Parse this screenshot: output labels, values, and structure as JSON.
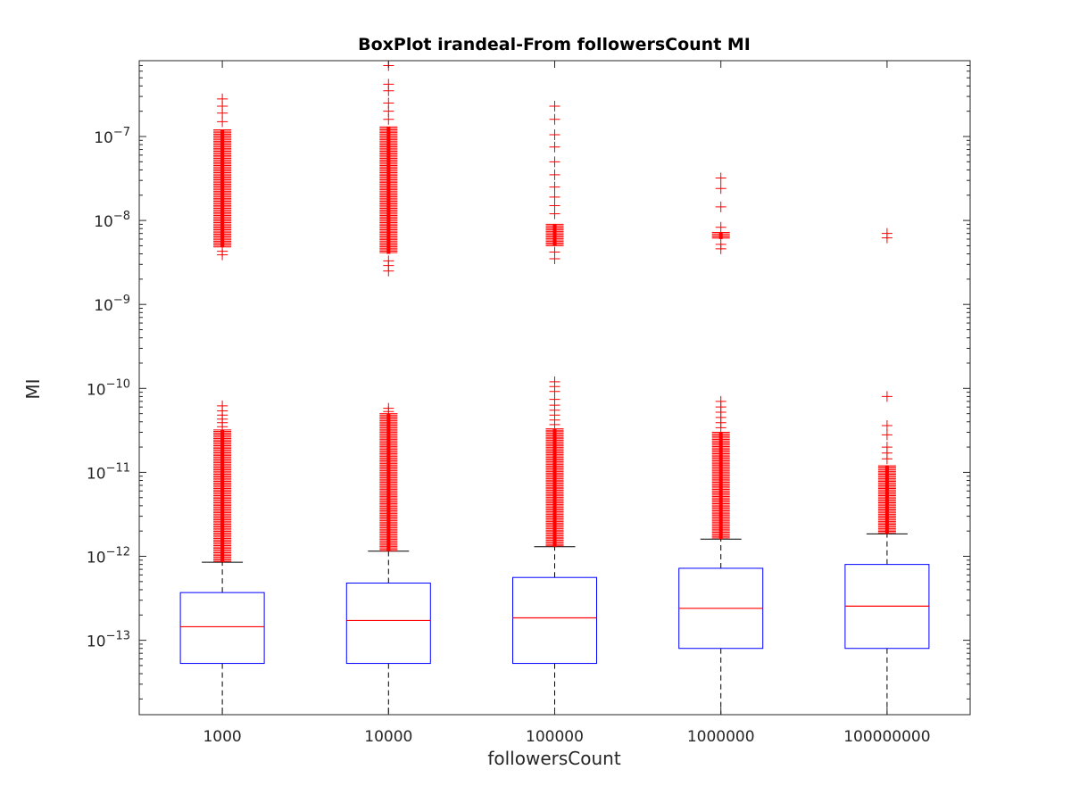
{
  "chart_data": {
    "type": "boxplot",
    "title": "BoxPlot irandeal-From followersCount MI",
    "xlabel": "followersCount",
    "ylabel": "MI",
    "yscale": "log",
    "ylim": [
      1.3e-14,
      8e-07
    ],
    "ytick_exponents": [
      -13,
      -12,
      -11,
      -10,
      -9,
      -8,
      -7
    ],
    "ytick_base": "10",
    "grid": false,
    "categories": [
      "1000",
      "10000",
      "100000",
      "1000000",
      "100000000"
    ],
    "boxes": [
      {
        "category": "1000",
        "whisker_low": 1.3e-14,
        "q1": 5.3e-14,
        "median": 1.45e-13,
        "q3": 3.7e-13,
        "whisker_high": 8.5e-13,
        "outlier_bands": [
          [
            8.5e-13,
            3.2e-11
          ],
          [
            4.8e-09,
            1.2e-07
          ]
        ],
        "outliers": [
          3.5e-11,
          3.9e-11,
          4.3e-11,
          4.8e-11,
          5.4e-11,
          6.2e-11,
          3.9e-09,
          4.3e-09,
          1.5e-07,
          1.9e-07,
          2.3e-07,
          2.8e-07
        ]
      },
      {
        "category": "10000",
        "whisker_low": 1.3e-14,
        "q1": 5.3e-14,
        "median": 1.72e-13,
        "q3": 4.8e-13,
        "whisker_high": 1.15e-12,
        "outlier_bands": [
          [
            1.15e-12,
            5e-11
          ],
          [
            4e-09,
            1.3e-07
          ]
        ],
        "outliers": [
          5.3e-11,
          5.8e-11,
          2.5e-09,
          2.9e-09,
          3.3e-09,
          1.6e-07,
          2e-07,
          2.5e-07,
          3.5e-07,
          4.2e-07,
          7e-07
        ]
      },
      {
        "category": "100000",
        "whisker_low": 1.3e-14,
        "q1": 5.3e-14,
        "median": 1.85e-13,
        "q3": 5.6e-13,
        "whisker_high": 1.3e-12,
        "outlier_bands": [
          [
            1.3e-12,
            3.3e-11
          ],
          [
            5e-09,
            9e-09
          ]
        ],
        "outliers": [
          3.7e-11,
          4.2e-11,
          4.8e-11,
          5.5e-11,
          6.3e-11,
          7.4e-11,
          9.2e-11,
          1.05e-10,
          1.2e-10,
          3.5e-09,
          4.2e-09,
          1.2e-08,
          1.5e-08,
          1.9e-08,
          2.5e-08,
          3.5e-08,
          5e-08,
          7.5e-08,
          1.05e-07,
          1.6e-07,
          2.3e-07
        ]
      },
      {
        "category": "1000000",
        "whisker_low": 1.3e-14,
        "q1": 8e-14,
        "median": 2.4e-13,
        "q3": 7.2e-13,
        "whisker_high": 1.6e-12,
        "outlier_bands": [
          [
            1.6e-12,
            3e-11
          ],
          [
            6e-09,
            7.2e-09
          ]
        ],
        "outliers": [
          3.4e-11,
          3.9e-11,
          4.5e-11,
          5.2e-11,
          6e-11,
          7e-11,
          4.6e-09,
          5.2e-09,
          8.3e-09,
          1.45e-08,
          2.4e-08,
          3.2e-08
        ]
      },
      {
        "category": "100000000",
        "whisker_low": 1.3e-14,
        "q1": 8e-14,
        "median": 2.55e-13,
        "q3": 8e-13,
        "whisker_high": 1.85e-12,
        "outlier_bands": [
          [
            1.85e-12,
            1.2e-11
          ]
        ],
        "outliers": [
          1.45e-11,
          1.7e-11,
          2e-11,
          2.8e-11,
          3.6e-11,
          8e-11,
          6.2e-09,
          7e-09
        ]
      }
    ],
    "colors": {
      "box": "#0000ff",
      "median": "#ff0000",
      "outlier": "#ff0000",
      "whisker": "#000000",
      "axes": "#262626"
    }
  }
}
